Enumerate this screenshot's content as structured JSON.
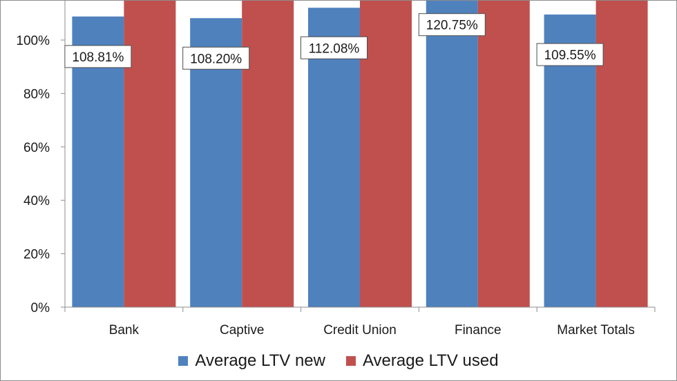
{
  "chart_data": {
    "type": "bar",
    "title": "",
    "xlabel": "",
    "ylabel": "",
    "categories": [
      "Bank",
      "Captive",
      "Credit Union",
      "Finance",
      "Market Totals"
    ],
    "series": [
      {
        "name": "Average LTV new",
        "color": "#4f81bd",
        "values": [
          108.81,
          108.2,
          112.08,
          120.75,
          109.55
        ],
        "data_labels": [
          "108.81%",
          "108.20%",
          "112.08%",
          "120.75%",
          "109.55%"
        ]
      },
      {
        "name": "Average LTV used",
        "color": "#c0504d",
        "values": [
          125,
          125,
          125,
          125,
          125
        ],
        "data_labels": []
      }
    ],
    "ylim": [
      0,
      100
    ],
    "yticks": [
      0,
      20,
      40,
      60,
      80,
      100
    ],
    "ytick_labels": [
      "0%",
      "20%",
      "40%",
      "60%",
      "80%",
      "100%"
    ],
    "grid": false,
    "legend_position": "bottom"
  }
}
